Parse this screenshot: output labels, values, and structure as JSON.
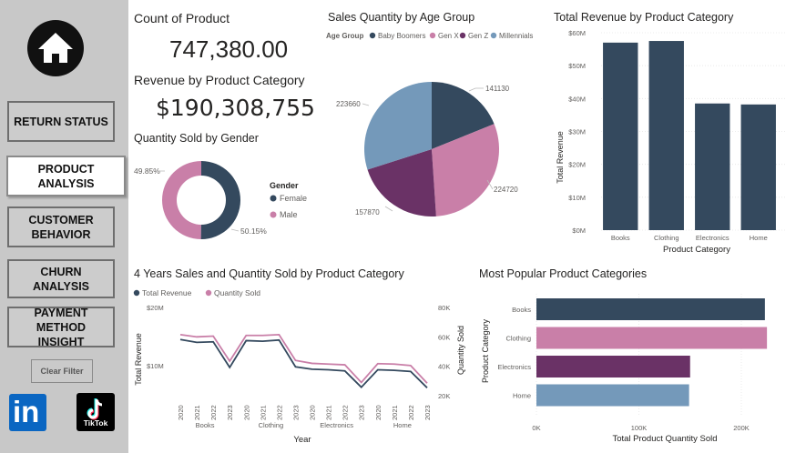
{
  "sidebar": {
    "home_icon": "home-icon",
    "nav": [
      {
        "label": "RETURN STATUS",
        "active": false
      },
      {
        "label": "PRODUCT ANALYSIS",
        "active": true
      },
      {
        "label": "CUSTOMER BEHAVIOR",
        "active": false
      },
      {
        "label": "CHURN ANALYSIS",
        "active": false
      },
      {
        "label": "PAYMENT METHOD INSIGHT",
        "active": false
      }
    ],
    "clear_filter_label": "Clear Filter",
    "linkedin_icon": "linkedin-icon",
    "tiktok_icon": "tiktok-icon",
    "tiktok_label": "TikTok",
    "linkedin_label": "in"
  },
  "kpis": {
    "count_title": "Count of Product",
    "count_value": "747,380.00",
    "revenue_title": "Revenue by Product Category",
    "revenue_value": "$190,308,755"
  },
  "colors": {
    "dark_slate": "#34495e",
    "pink": "#c97fa8",
    "purple": "#6a3266",
    "light_blue": "#7499ba"
  },
  "chart_data": [
    {
      "id": "gender_donut",
      "type": "pie",
      "title": "Quantity Sold by Gender",
      "legend_title": "Gender",
      "legend_position": "right",
      "slices": [
        {
          "name": "Female",
          "value": 50.15,
          "label": "50.15%",
          "color": "#34495e"
        },
        {
          "name": "Male",
          "value": 49.85,
          "label": "49.85%",
          "color": "#c97fa8"
        }
      ]
    },
    {
      "id": "age_pie",
      "type": "pie",
      "title": "Sales Quantity by Age Group",
      "legend_title": "Age Group",
      "legend_position": "top",
      "slices": [
        {
          "name": "Baby Boomers",
          "value": 141130,
          "label": "141130",
          "color": "#34495e"
        },
        {
          "name": "Gen X",
          "value": 224720,
          "label": "224720",
          "color": "#c97fa8"
        },
        {
          "name": "Gen Z",
          "value": 157870,
          "label": "157870",
          "color": "#6a3266"
        },
        {
          "name": "Millennials",
          "value": 223660,
          "label": "223660",
          "color": "#7499ba"
        }
      ]
    },
    {
      "id": "revenue_bar",
      "type": "bar",
      "title": "Total Revenue by Product Category",
      "xlabel": "Product Category",
      "ylabel": "Total Revenue",
      "ylim": [
        0,
        60
      ],
      "yticks": [
        "$0M",
        "$10M",
        "$20M",
        "$30M",
        "$40M",
        "$50M",
        "$60M"
      ],
      "categories": [
        "Books",
        "Clothing",
        "Electronics",
        "Home"
      ],
      "values": [
        57,
        57.5,
        38.5,
        38.2
      ],
      "color": "#34495e"
    },
    {
      "id": "trend_line",
      "type": "line",
      "title": "4 Years Sales and Quantity Sold by Product Category",
      "xlabel": "Year",
      "ylabel": "Total Revenue",
      "y2label": "Quantity Sold",
      "left_ticks": [
        "$10M",
        "$20M"
      ],
      "right_ticks": [
        "20K",
        "40K",
        "60K",
        "80K"
      ],
      "legend_position": "top-left",
      "x_years": [
        "2020",
        "2021",
        "2022",
        "2023",
        "2020",
        "2021",
        "2022",
        "2023",
        "2020",
        "2021",
        "2022",
        "2023",
        "2020",
        "2021",
        "2022",
        "2023"
      ],
      "x_groups": [
        "Books",
        "Clothing",
        "Electronics",
        "Home"
      ],
      "series": [
        {
          "name": "Total Revenue",
          "color": "#34495e",
          "values": [
            14.5,
            14.0,
            14.1,
            9.7,
            14.3,
            14.2,
            14.4,
            9.8,
            9.4,
            9.3,
            9.1,
            6.3,
            9.3,
            9.2,
            9.0,
            6.2
          ]
        },
        {
          "name": "Quantity Sold",
          "color": "#c97fa8",
          "values": [
            61.5,
            60.0,
            60.5,
            43.5,
            61.0,
            61.0,
            61.5,
            44.0,
            42.0,
            41.5,
            41.0,
            29.0,
            41.8,
            41.5,
            40.5,
            28.5
          ]
        }
      ]
    },
    {
      "id": "popular_bar",
      "type": "bar",
      "title": "Most Popular Product Categories",
      "orientation": "horizontal",
      "xlabel": "Total Product Quantity Sold",
      "ylabel": "Product Category",
      "xticks": [
        "0K",
        "100K",
        "200K"
      ],
      "categories": [
        "Books",
        "Clothing",
        "Electronics",
        "Home"
      ],
      "values": [
        223000,
        225000,
        150000,
        149000
      ],
      "colors": [
        "#34495e",
        "#c97fa8",
        "#6a3266",
        "#7499ba"
      ]
    }
  ]
}
